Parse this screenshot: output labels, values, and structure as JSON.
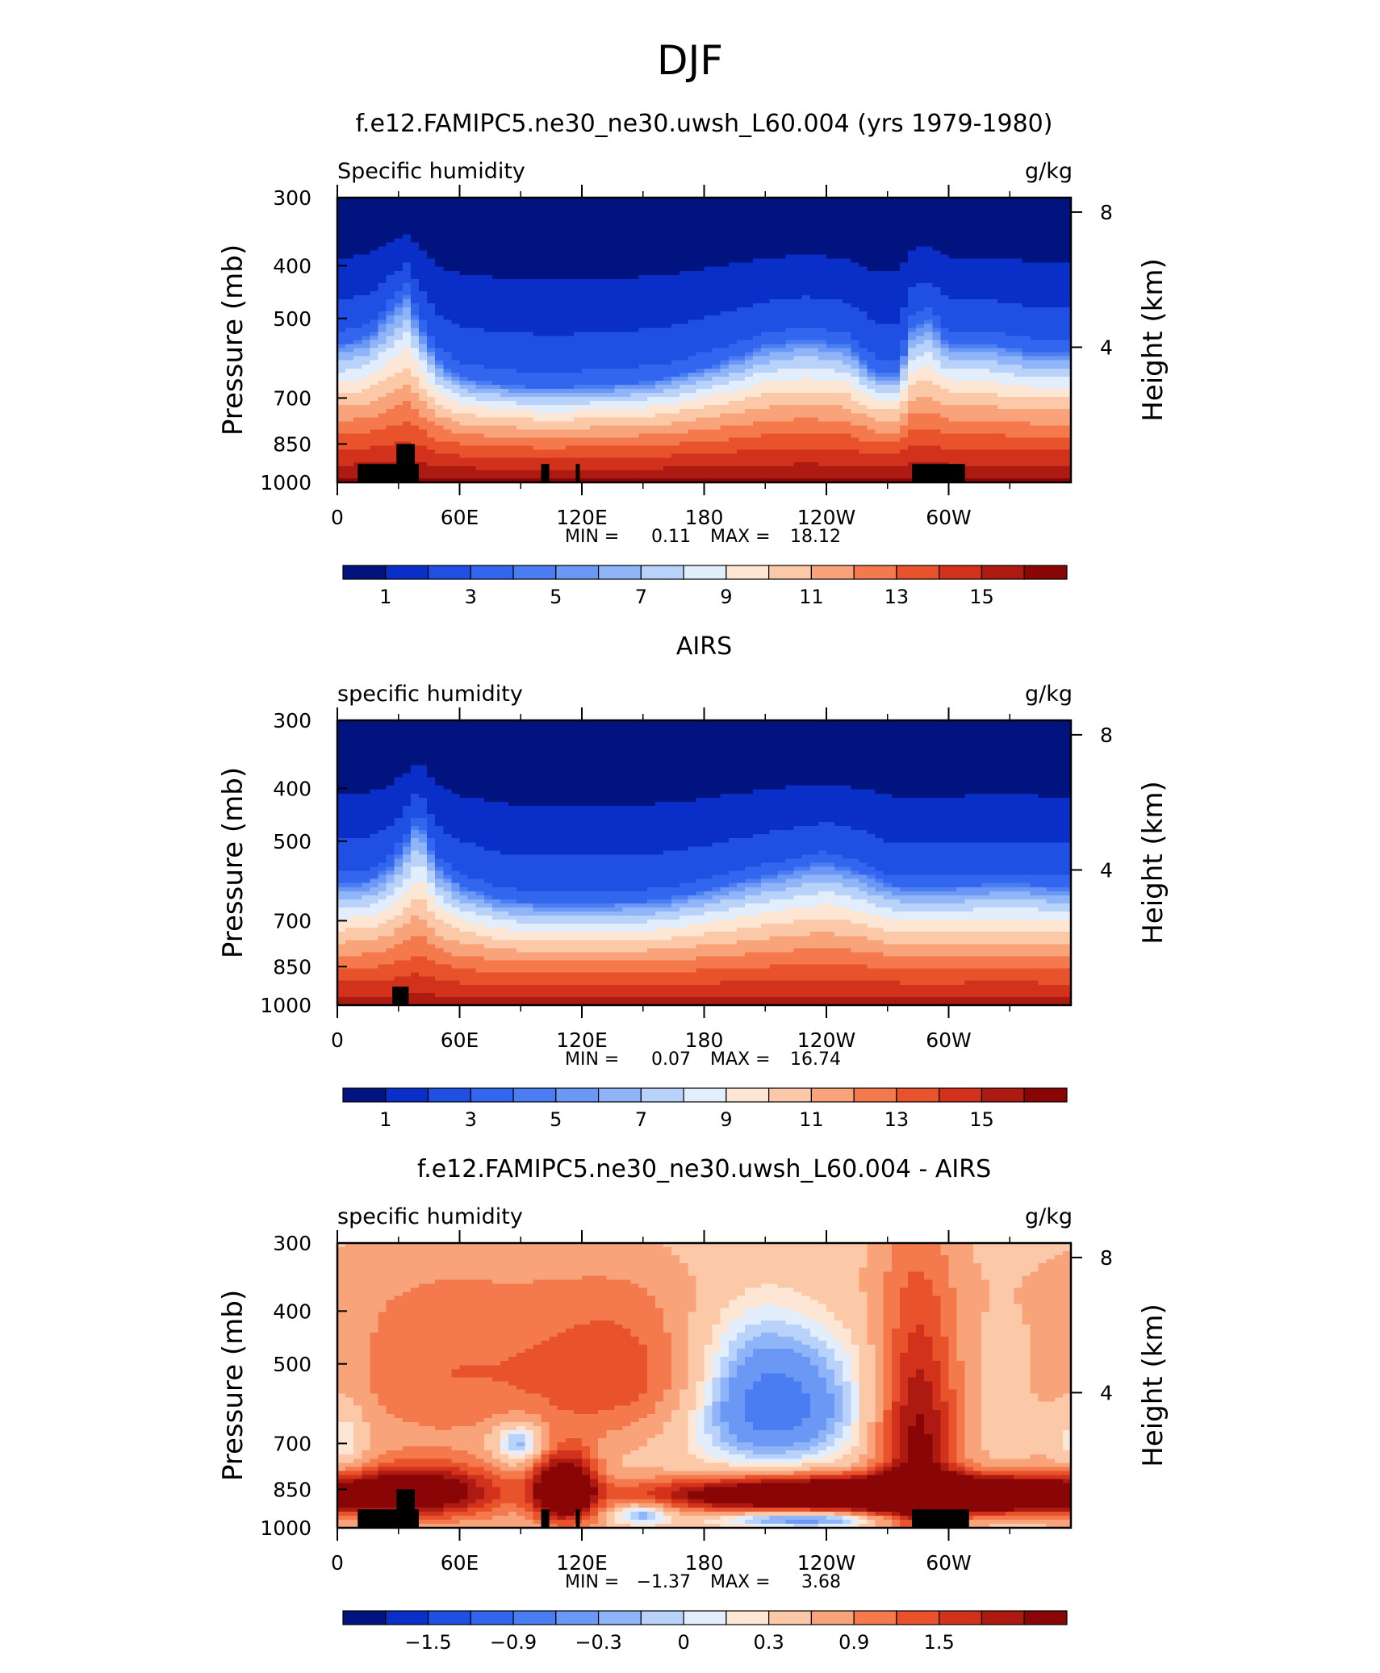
{
  "page_title": "DJF",
  "chart_data": [
    {
      "type": "heatmap",
      "title": "f.e12.FAMIPC5.ne30_ne30.uwsh_L60.004 (yrs 1979-1980)",
      "left_label": "Specific humidity",
      "right_label": "g/kg",
      "ylabel": "Pressure (mb)",
      "ylabel_right": "Height (km)",
      "yticks": [
        "300",
        "400",
        "500",
        "700",
        "850",
        "1000"
      ],
      "ytick_values": [
        300,
        400,
        500,
        700,
        850,
        1000
      ],
      "yticks_right": [
        "8",
        "4"
      ],
      "yticks_right_values_km": [
        8,
        4
      ],
      "xticks": [
        "0",
        "60E",
        "120E",
        "180",
        "120W",
        "60W"
      ],
      "xtick_values_deg": [
        0,
        60,
        120,
        180,
        240,
        300
      ],
      "xlim_deg": [
        0,
        360
      ],
      "ylim_mb": [
        300,
        1000
      ],
      "stats": {
        "min_label": "MIN =",
        "min": "0.11",
        "max_label": "MAX =",
        "max": "18.12"
      },
      "colorbar": {
        "labels": [
          "1",
          "3",
          "5",
          "7",
          "9",
          "11",
          "13",
          "15"
        ],
        "levels": [
          0,
          1,
          2,
          3,
          4,
          5,
          6,
          7,
          8,
          9,
          10,
          11,
          12,
          13,
          14,
          15,
          16
        ],
        "colors": [
          "#00137f",
          "#0a2fc8",
          "#1f4fe3",
          "#3366ee",
          "#4a7cf2",
          "#6b98f4",
          "#8fb4f7",
          "#b9d2fa",
          "#e3eefc",
          "#fde7d4",
          "#fcc9a8",
          "#f9a37a",
          "#f47a4e",
          "#e8532c",
          "#d2321c",
          "#ad1a11",
          "#8a0505"
        ]
      },
      "field": {
        "kind": "humidity",
        "lon_points_deg": [
          0,
          15,
          25,
          34,
          40,
          50,
          60,
          80,
          100,
          110,
          120,
          140,
          160,
          180,
          200,
          210,
          230,
          250,
          265,
          275,
          282,
          290,
          300,
          320,
          340,
          360
        ],
        "peak_pressure_mb": [
          560,
          540,
          490,
          450,
          510,
          600,
          640,
          660,
          670,
          670,
          665,
          660,
          645,
          615,
          580,
          560,
          545,
          560,
          630,
          630,
          520,
          500,
          555,
          555,
          575,
          575
        ],
        "surface_value_gkg": 16.2,
        "top_value_gkg": 0.3
      },
      "land_mask": [
        {
          "lon0": 10,
          "lon1": 40,
          "p_top": 925
        },
        {
          "lon0": 29,
          "lon1": 38,
          "p_top": 850
        },
        {
          "lon0": 100,
          "lon1": 104,
          "p_top": 925
        },
        {
          "lon0": 117,
          "lon1": 119,
          "p_top": 925
        },
        {
          "lon0": 282,
          "lon1": 308,
          "p_top": 925
        }
      ]
    },
    {
      "type": "heatmap",
      "title": "AIRS",
      "left_label": "specific humidity",
      "right_label": "g/kg",
      "ylabel": "Pressure (mb)",
      "ylabel_right": "Height (km)",
      "yticks": [
        "300",
        "400",
        "500",
        "700",
        "850",
        "1000"
      ],
      "ytick_values": [
        300,
        400,
        500,
        700,
        850,
        1000
      ],
      "yticks_right": [
        "8",
        "4"
      ],
      "yticks_right_values_km": [
        8,
        4
      ],
      "xticks": [
        "0",
        "60E",
        "120E",
        "180",
        "120W",
        "60W"
      ],
      "xtick_values_deg": [
        0,
        60,
        120,
        180,
        240,
        300
      ],
      "xlim_deg": [
        0,
        360
      ],
      "ylim_mb": [
        300,
        1000
      ],
      "stats": {
        "min_label": "MIN =",
        "min": "0.07",
        "max_label": "MAX =",
        "max": "16.74"
      },
      "colorbar": {
        "labels": [
          "1",
          "3",
          "5",
          "7",
          "9",
          "11",
          "13",
          "15"
        ],
        "levels": [
          0,
          1,
          2,
          3,
          4,
          5,
          6,
          7,
          8,
          9,
          10,
          11,
          12,
          13,
          14,
          15,
          16
        ],
        "colors": [
          "#00137f",
          "#0a2fc8",
          "#1f4fe3",
          "#3366ee",
          "#4a7cf2",
          "#6b98f4",
          "#8fb4f7",
          "#b9d2fa",
          "#e3eefc",
          "#fde7d4",
          "#fcc9a8",
          "#f9a37a",
          "#f47a4e",
          "#e8532c",
          "#d2321c",
          "#ad1a11",
          "#8a0505"
        ]
      },
      "field": {
        "kind": "humidity",
        "lon_points_deg": [
          0,
          15,
          25,
          34,
          40,
          50,
          60,
          80,
          100,
          120,
          140,
          160,
          180,
          200,
          220,
          240,
          260,
          270,
          285,
          300,
          320,
          340,
          360
        ],
        "peak_pressure_mb": [
          600,
          590,
          560,
          500,
          450,
          560,
          600,
          640,
          650,
          650,
          648,
          640,
          615,
          590,
          565,
          545,
          575,
          600,
          610,
          605,
          600,
          600,
          610
        ],
        "surface_value_gkg": 15.6,
        "top_value_gkg": 0.2
      },
      "land_mask": [
        {
          "lon0": 27,
          "lon1": 35,
          "p_top": 925
        }
      ]
    },
    {
      "type": "heatmap",
      "title": "f.e12.FAMIPC5.ne30_ne30.uwsh_L60.004 - AIRS",
      "left_label": "specific humidity",
      "right_label": "g/kg",
      "ylabel": "Pressure (mb)",
      "ylabel_right": "Height (km)",
      "yticks": [
        "300",
        "400",
        "500",
        "700",
        "850",
        "1000"
      ],
      "ytick_values": [
        300,
        400,
        500,
        700,
        850,
        1000
      ],
      "yticks_right": [
        "8",
        "4"
      ],
      "yticks_right_values_km": [
        8,
        4
      ],
      "xticks": [
        "0",
        "60E",
        "120E",
        "180",
        "120W",
        "60W"
      ],
      "xtick_values_deg": [
        0,
        60,
        120,
        180,
        240,
        300
      ],
      "xlim_deg": [
        0,
        360
      ],
      "ylim_mb": [
        300,
        1000
      ],
      "stats": {
        "min_label": "MIN =",
        "min": "−1.37",
        "max_label": "MAX =",
        "max": "3.68"
      },
      "colorbar": {
        "labels": [
          "−1.5",
          "−0.9",
          "−0.3",
          "0",
          "0.3",
          "0.9",
          "1.5"
        ],
        "levels": [
          -2.1,
          -1.8,
          -1.5,
          -1.2,
          -0.9,
          -0.6,
          -0.3,
          -0.15,
          0,
          0.15,
          0.3,
          0.6,
          0.9,
          1.2,
          1.5,
          1.8,
          2.1
        ],
        "colors": [
          "#00137f",
          "#0a2fc8",
          "#1f4fe3",
          "#3366ee",
          "#4a7cf2",
          "#6b98f4",
          "#8fb4f7",
          "#b9d2fa",
          "#e3eefc",
          "#fde7d4",
          "#fcc9a8",
          "#f9a37a",
          "#f47a4e",
          "#e8532c",
          "#d2321c",
          "#ad1a11",
          "#8a0505"
        ]
      },
      "field": {
        "kind": "difference",
        "background_gkg": 0.45,
        "blobs": [
          {
            "lon": 320,
            "p": 880,
            "dlon": 150,
            "dp": 150,
            "amp": 0.0
          },
          {
            "lon": 225,
            "p": 870,
            "dlon": 55,
            "dp": 45,
            "amp": 2.6
          },
          {
            "lon": 300,
            "p": 870,
            "dlon": 45,
            "dp": 45,
            "amp": 2.2
          },
          {
            "lon": 40,
            "p": 860,
            "dlon": 30,
            "dp": 70,
            "amp": 2.2
          },
          {
            "lon": 105,
            "p": 850,
            "dlon": 8,
            "dp": 90,
            "amp": 1.8
          },
          {
            "lon": 118,
            "p": 850,
            "dlon": 8,
            "dp": 90,
            "amp": 1.8
          },
          {
            "lon": 285,
            "p": 700,
            "dlon": 14,
            "dp": 260,
            "amp": 1.8
          },
          {
            "lon": 140,
            "p": 520,
            "dlon": 35,
            "dp": 110,
            "amp": 1.0
          },
          {
            "lon": 50,
            "p": 520,
            "dlon": 40,
            "dp": 130,
            "amp": 0.7
          },
          {
            "lon": 330,
            "p": 870,
            "dlon": 30,
            "dp": 45,
            "amp": 1.2
          },
          {
            "lon": 212,
            "p": 600,
            "dlon": 30,
            "dp": 110,
            "amp": -1.3
          },
          {
            "lon": 230,
            "p": 960,
            "dlon": 30,
            "dp": 25,
            "amp": -1.2
          },
          {
            "lon": 200,
            "p": 430,
            "dlon": 28,
            "dp": 90,
            "amp": -0.3
          },
          {
            "lon": 90,
            "p": 700,
            "dlon": 10,
            "dp": 45,
            "amp": -1.0
          },
          {
            "lon": 150,
            "p": 940,
            "dlon": 10,
            "dp": 30,
            "amp": -0.9
          },
          {
            "lon": 4,
            "p": 700,
            "dlon": 8,
            "dp": 90,
            "amp": -0.5
          },
          {
            "lon": 120,
            "p": 360,
            "dlon": 150,
            "dp": 50,
            "amp": 0.15
          }
        ]
      },
      "land_mask": [
        {
          "lon0": 10,
          "lon1": 40,
          "p_top": 925
        },
        {
          "lon0": 29,
          "lon1": 38,
          "p_top": 850
        },
        {
          "lon0": 100,
          "lon1": 104,
          "p_top": 925
        },
        {
          "lon0": 117,
          "lon1": 119,
          "p_top": 925
        },
        {
          "lon0": 282,
          "lon1": 310,
          "p_top": 925
        }
      ]
    }
  ]
}
